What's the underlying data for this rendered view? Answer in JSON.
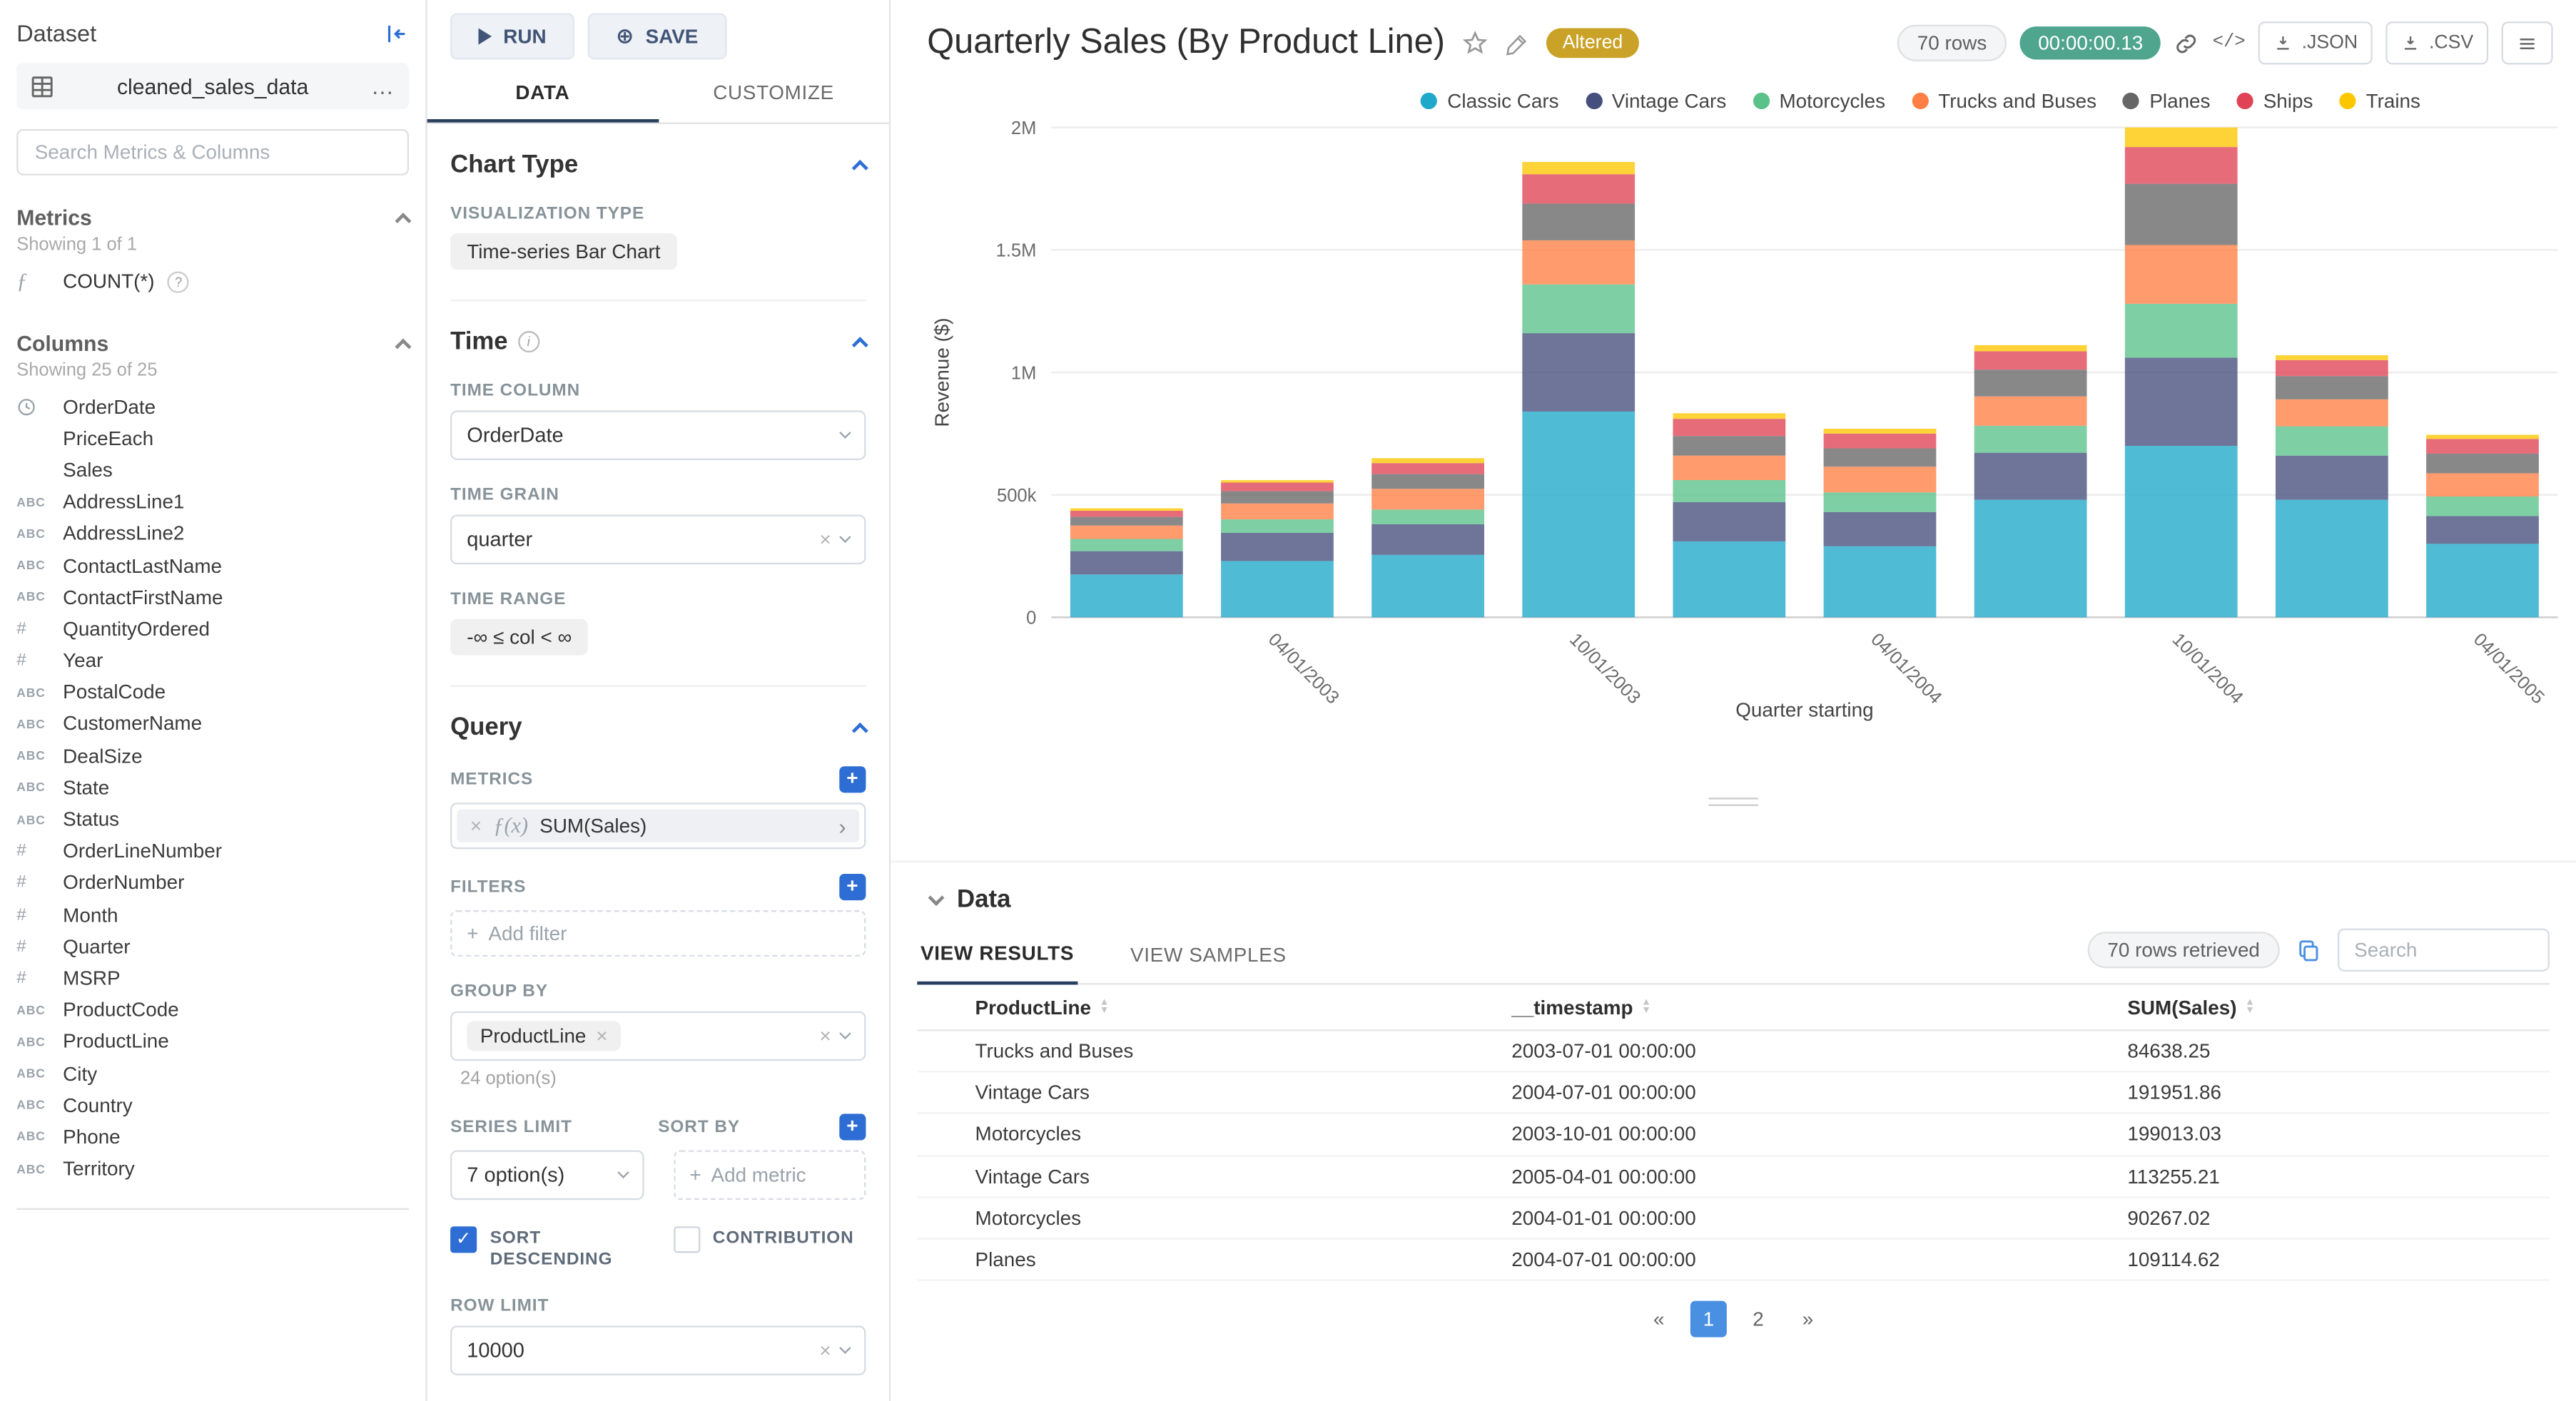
{
  "colors": {
    "accent_blue": "#2E6ED4",
    "tab_ink": "#2A3F5F",
    "timer_green": "#4FA58E",
    "altered_gold": "#C9A227",
    "pagination_active": "#4A90E2"
  },
  "dataset_panel": {
    "title": "Dataset",
    "dataset_name": "cleaned_sales_data",
    "search_placeholder": "Search Metrics & Columns",
    "metrics": {
      "header": "Metrics",
      "count": "Showing 1 of 1",
      "items": [
        {
          "label": "COUNT(*)"
        }
      ]
    },
    "columns": {
      "header": "Columns",
      "count": "Showing 25 of 25",
      "items": [
        {
          "type": "time",
          "label": "OrderDate"
        },
        {
          "type": "none",
          "label": "PriceEach"
        },
        {
          "type": "none",
          "label": "Sales"
        },
        {
          "type": "text",
          "label": "AddressLine1"
        },
        {
          "type": "text",
          "label": "AddressLine2"
        },
        {
          "type": "text",
          "label": "ContactLastName"
        },
        {
          "type": "text",
          "label": "ContactFirstName"
        },
        {
          "type": "num",
          "label": "QuantityOrdered"
        },
        {
          "type": "num",
          "label": "Year"
        },
        {
          "type": "text",
          "label": "PostalCode"
        },
        {
          "type": "text",
          "label": "CustomerName"
        },
        {
          "type": "text",
          "label": "DealSize"
        },
        {
          "type": "text",
          "label": "State"
        },
        {
          "type": "text",
          "label": "Status"
        },
        {
          "type": "num",
          "label": "OrderLineNumber"
        },
        {
          "type": "num",
          "label": "OrderNumber"
        },
        {
          "type": "num",
          "label": "Month"
        },
        {
          "type": "num",
          "label": "Quarter"
        },
        {
          "type": "num",
          "label": "MSRP"
        },
        {
          "type": "text",
          "label": "ProductCode"
        },
        {
          "type": "text",
          "label": "ProductLine"
        },
        {
          "type": "text",
          "label": "City"
        },
        {
          "type": "text",
          "label": "Country"
        },
        {
          "type": "text",
          "label": "Phone"
        },
        {
          "type": "text",
          "label": "Territory"
        }
      ]
    }
  },
  "controls": {
    "run_label": "RUN",
    "save_label": "SAVE",
    "tabs": {
      "data": "DATA",
      "customize": "CUSTOMIZE"
    },
    "chart_type": {
      "title": "Chart Type",
      "viz_label": "VISUALIZATION TYPE",
      "viz_value": "Time-series Bar Chart"
    },
    "time": {
      "title": "Time",
      "column_label": "TIME COLUMN",
      "column_value": "OrderDate",
      "grain_label": "TIME GRAIN",
      "grain_value": "quarter",
      "range_label": "TIME RANGE",
      "range_value": "-∞ ≤ col < ∞"
    },
    "query": {
      "title": "Query",
      "metrics_label": "METRICS",
      "metric_prefix": "ƒ(x)",
      "metric_value": "SUM(Sales)",
      "filters_label": "FILTERS",
      "add_filter": "Add filter",
      "group_by_label": "GROUP BY",
      "group_by_tag": "ProductLine",
      "group_by_options": "24 option(s)",
      "series_limit_label": "SERIES LIMIT",
      "series_limit_value": "7 option(s)",
      "sort_by_label": "SORT BY",
      "add_metric": "Add metric",
      "sort_descending": "SORT DESCENDING",
      "contribution": "CONTRIBUTION",
      "row_limit_label": "ROW LIMIT",
      "row_limit_value": "10000"
    }
  },
  "header": {
    "title": "Quarterly Sales (By Product Line)",
    "altered": "Altered",
    "rows_badge": "70 rows",
    "timer": "00:00:00.13",
    "json_btn": ".JSON",
    "csv_btn": ".CSV"
  },
  "chart_data": {
    "type": "bar",
    "stacked": true,
    "title": "Quarterly Sales (By Product Line)",
    "xlabel": "Quarter starting",
    "ylabel": "Revenue ($)",
    "ylim": [
      0,
      2000000
    ],
    "y_ticks": [
      "0",
      "500k",
      "1M",
      "1.5M",
      "2M"
    ],
    "grid": true,
    "legend_position": "top-right",
    "x": [
      "2003-01-01",
      "2003-04-01",
      "2003-07-01",
      "2003-10-01",
      "2004-01-01",
      "2004-04-01",
      "2004-07-01",
      "2004-10-01",
      "2005-01-01",
      "2005-04-01"
    ],
    "x_ticks": [
      {
        "index": 1,
        "label": "04/01/2003"
      },
      {
        "index": 3,
        "label": "10/01/2003"
      },
      {
        "index": 5,
        "label": "04/01/2004"
      },
      {
        "index": 7,
        "label": "10/01/2004"
      },
      {
        "index": 9,
        "label": "04/01/2005"
      }
    ],
    "series": [
      {
        "name": "Classic Cars",
        "color": "#1FA8C9",
        "values": [
          175000,
          230000,
          255000,
          840000,
          310000,
          290000,
          480000,
          700000,
          480000,
          300000
        ]
      },
      {
        "name": "Vintage Cars",
        "color": "#454E7C",
        "values": [
          95000,
          115000,
          125000,
          320000,
          160000,
          140000,
          191952,
          360000,
          180000,
          113255
        ]
      },
      {
        "name": "Motorcycles",
        "color": "#5AC189",
        "values": [
          50000,
          55000,
          60000,
          199013,
          90267,
          80000,
          110000,
          220000,
          120000,
          80000
        ]
      },
      {
        "name": "Trucks and Buses",
        "color": "#FF7F44",
        "values": [
          55000,
          65000,
          84638,
          180000,
          100000,
          105000,
          120000,
          240000,
          110000,
          95000
        ]
      },
      {
        "name": "Planes",
        "color": "#666666",
        "values": [
          35000,
          50000,
          60000,
          150000,
          80000,
          75000,
          109115,
          250000,
          95000,
          80000
        ]
      },
      {
        "name": "Ships",
        "color": "#E04355",
        "values": [
          25000,
          35000,
          45000,
          120000,
          70000,
          60000,
          75000,
          150000,
          65000,
          60000
        ]
      },
      {
        "name": "Trains",
        "color": "#FCC700",
        "values": [
          10000,
          10000,
          20000,
          50000,
          23000,
          20000,
          25000,
          80000,
          20000,
          17000
        ]
      }
    ]
  },
  "data_section": {
    "title": "Data",
    "tabs": {
      "results": "VIEW RESULTS",
      "samples": "VIEW SAMPLES"
    },
    "rows_retrieved": "70 rows retrieved",
    "search_placeholder": "Search",
    "table": {
      "columns": [
        "ProductLine",
        "__timestamp",
        "SUM(Sales)"
      ],
      "rows": [
        [
          "Trucks and Buses",
          "2003-07-01 00:00:00",
          "84638.25"
        ],
        [
          "Vintage Cars",
          "2004-07-01 00:00:00",
          "191951.86"
        ],
        [
          "Motorcycles",
          "2003-10-01 00:00:00",
          "199013.03"
        ],
        [
          "Vintage Cars",
          "2005-04-01 00:00:00",
          "113255.21"
        ],
        [
          "Motorcycles",
          "2004-01-01 00:00:00",
          "90267.02"
        ],
        [
          "Planes",
          "2004-07-01 00:00:00",
          "109114.62"
        ]
      ]
    },
    "pagination": {
      "prev": "«",
      "pages": [
        "1",
        "2"
      ],
      "active": "1",
      "next": "»"
    }
  }
}
